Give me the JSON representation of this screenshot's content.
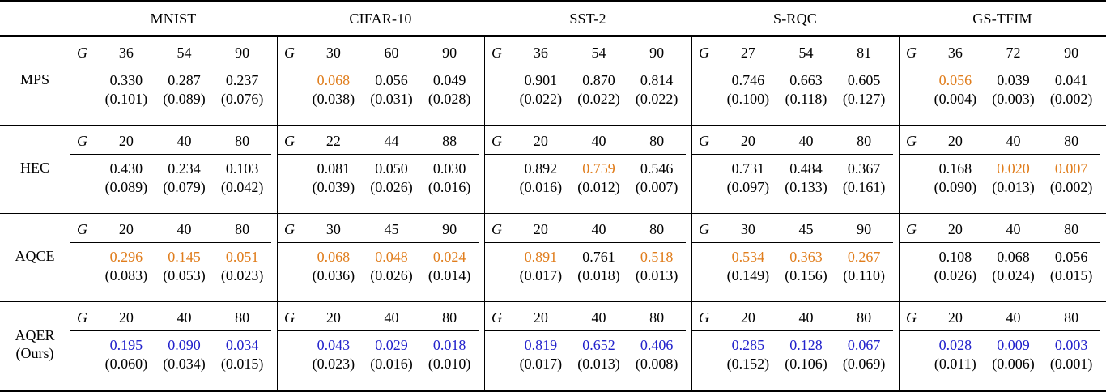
{
  "table": {
    "g_symbol": "G",
    "datasets": [
      "MNIST",
      "CIFAR-10",
      "SST-2",
      "S-RQC",
      "GS-TFIM"
    ],
    "colors": {
      "default": "#000000",
      "orange": "#E07D1C",
      "blue": "#2222CC"
    },
    "rows": [
      {
        "method": "MPS",
        "method_suffix": "",
        "cells": [
          {
            "gates": [
              "36",
              "54",
              "90"
            ],
            "values": [
              {
                "v": "0.330",
                "c": "default"
              },
              {
                "v": "0.287",
                "c": "default"
              },
              {
                "v": "0.237",
                "c": "default"
              }
            ],
            "stds": [
              "(0.101)",
              "(0.089)",
              "(0.076)"
            ]
          },
          {
            "gates": [
              "30",
              "60",
              "90"
            ],
            "values": [
              {
                "v": "0.068",
                "c": "orange"
              },
              {
                "v": "0.056",
                "c": "default"
              },
              {
                "v": "0.049",
                "c": "default"
              }
            ],
            "stds": [
              "(0.038)",
              "(0.031)",
              "(0.028)"
            ]
          },
          {
            "gates": [
              "36",
              "54",
              "90"
            ],
            "values": [
              {
                "v": "0.901",
                "c": "default"
              },
              {
                "v": "0.870",
                "c": "default"
              },
              {
                "v": "0.814",
                "c": "default"
              }
            ],
            "stds": [
              "(0.022)",
              "(0.022)",
              "(0.022)"
            ]
          },
          {
            "gates": [
              "27",
              "54",
              "81"
            ],
            "values": [
              {
                "v": "0.746",
                "c": "default"
              },
              {
                "v": "0.663",
                "c": "default"
              },
              {
                "v": "0.605",
                "c": "default"
              }
            ],
            "stds": [
              "(0.100)",
              "(0.118)",
              "(0.127)"
            ]
          },
          {
            "gates": [
              "36",
              "72",
              "90"
            ],
            "values": [
              {
                "v": "0.056",
                "c": "orange"
              },
              {
                "v": "0.039",
                "c": "default"
              },
              {
                "v": "0.041",
                "c": "default"
              }
            ],
            "stds": [
              "(0.004)",
              "(0.003)",
              "(0.002)"
            ]
          }
        ]
      },
      {
        "method": "HEC",
        "method_suffix": "",
        "cells": [
          {
            "gates": [
              "20",
              "40",
              "80"
            ],
            "values": [
              {
                "v": "0.430",
                "c": "default"
              },
              {
                "v": "0.234",
                "c": "default"
              },
              {
                "v": "0.103",
                "c": "default"
              }
            ],
            "stds": [
              "(0.089)",
              "(0.079)",
              "(0.042)"
            ]
          },
          {
            "gates": [
              "22",
              "44",
              "88"
            ],
            "values": [
              {
                "v": "0.081",
                "c": "default"
              },
              {
                "v": "0.050",
                "c": "default"
              },
              {
                "v": "0.030",
                "c": "default"
              }
            ],
            "stds": [
              "(0.039)",
              "(0.026)",
              "(0.016)"
            ]
          },
          {
            "gates": [
              "20",
              "40",
              "80"
            ],
            "values": [
              {
                "v": "0.892",
                "c": "default"
              },
              {
                "v": "0.759",
                "c": "orange"
              },
              {
                "v": "0.546",
                "c": "default"
              }
            ],
            "stds": [
              "(0.016)",
              "(0.012)",
              "(0.007)"
            ]
          },
          {
            "gates": [
              "20",
              "40",
              "80"
            ],
            "values": [
              {
                "v": "0.731",
                "c": "default"
              },
              {
                "v": "0.484",
                "c": "default"
              },
              {
                "v": "0.367",
                "c": "default"
              }
            ],
            "stds": [
              "(0.097)",
              "(0.133)",
              "(0.161)"
            ]
          },
          {
            "gates": [
              "20",
              "40",
              "80"
            ],
            "values": [
              {
                "v": "0.168",
                "c": "default"
              },
              {
                "v": "0.020",
                "c": "orange"
              },
              {
                "v": "0.007",
                "c": "orange"
              }
            ],
            "stds": [
              "(0.090)",
              "(0.013)",
              "(0.002)"
            ]
          }
        ]
      },
      {
        "method": "AQCE",
        "method_suffix": "",
        "cells": [
          {
            "gates": [
              "20",
              "40",
              "80"
            ],
            "values": [
              {
                "v": "0.296",
                "c": "orange"
              },
              {
                "v": "0.145",
                "c": "orange"
              },
              {
                "v": "0.051",
                "c": "orange"
              }
            ],
            "stds": [
              "(0.083)",
              "(0.053)",
              "(0.023)"
            ]
          },
          {
            "gates": [
              "30",
              "45",
              "90"
            ],
            "values": [
              {
                "v": "0.068",
                "c": "orange"
              },
              {
                "v": "0.048",
                "c": "orange"
              },
              {
                "v": "0.024",
                "c": "orange"
              }
            ],
            "stds": [
              "(0.036)",
              "(0.026)",
              "(0.014)"
            ]
          },
          {
            "gates": [
              "20",
              "40",
              "80"
            ],
            "values": [
              {
                "v": "0.891",
                "c": "orange"
              },
              {
                "v": "0.761",
                "c": "default"
              },
              {
                "v": "0.518",
                "c": "orange"
              }
            ],
            "stds": [
              "(0.017)",
              "(0.018)",
              "(0.013)"
            ]
          },
          {
            "gates": [
              "30",
              "45",
              "90"
            ],
            "values": [
              {
                "v": "0.534",
                "c": "orange"
              },
              {
                "v": "0.363",
                "c": "orange"
              },
              {
                "v": "0.267",
                "c": "orange"
              }
            ],
            "stds": [
              "(0.149)",
              "(0.156)",
              "(0.110)"
            ]
          },
          {
            "gates": [
              "20",
              "40",
              "80"
            ],
            "values": [
              {
                "v": "0.108",
                "c": "default"
              },
              {
                "v": "0.068",
                "c": "default"
              },
              {
                "v": "0.056",
                "c": "default"
              }
            ],
            "stds": [
              "(0.026)",
              "(0.024)",
              "(0.015)"
            ]
          }
        ]
      },
      {
        "method": "AQER",
        "method_suffix": "(Ours)",
        "cells": [
          {
            "gates": [
              "20",
              "40",
              "80"
            ],
            "values": [
              {
                "v": "0.195",
                "c": "blue"
              },
              {
                "v": "0.090",
                "c": "blue"
              },
              {
                "v": "0.034",
                "c": "blue"
              }
            ],
            "stds": [
              "(0.060)",
              "(0.034)",
              "(0.015)"
            ]
          },
          {
            "gates": [
              "20",
              "40",
              "80"
            ],
            "values": [
              {
                "v": "0.043",
                "c": "blue"
              },
              {
                "v": "0.029",
                "c": "blue"
              },
              {
                "v": "0.018",
                "c": "blue"
              }
            ],
            "stds": [
              "(0.023)",
              "(0.016)",
              "(0.010)"
            ]
          },
          {
            "gates": [
              "20",
              "40",
              "80"
            ],
            "values": [
              {
                "v": "0.819",
                "c": "blue"
              },
              {
                "v": "0.652",
                "c": "blue"
              },
              {
                "v": "0.406",
                "c": "blue"
              }
            ],
            "stds": [
              "(0.017)",
              "(0.013)",
              "(0.008)"
            ]
          },
          {
            "gates": [
              "20",
              "40",
              "80"
            ],
            "values": [
              {
                "v": "0.285",
                "c": "blue"
              },
              {
                "v": "0.128",
                "c": "blue"
              },
              {
                "v": "0.067",
                "c": "blue"
              }
            ],
            "stds": [
              "(0.152)",
              "(0.106)",
              "(0.069)"
            ]
          },
          {
            "gates": [
              "20",
              "40",
              "80"
            ],
            "values": [
              {
                "v": "0.028",
                "c": "blue"
              },
              {
                "v": "0.009",
                "c": "blue"
              },
              {
                "v": "0.003",
                "c": "blue"
              }
            ],
            "stds": [
              "(0.011)",
              "(0.006)",
              "(0.001)"
            ]
          }
        ]
      }
    ]
  }
}
